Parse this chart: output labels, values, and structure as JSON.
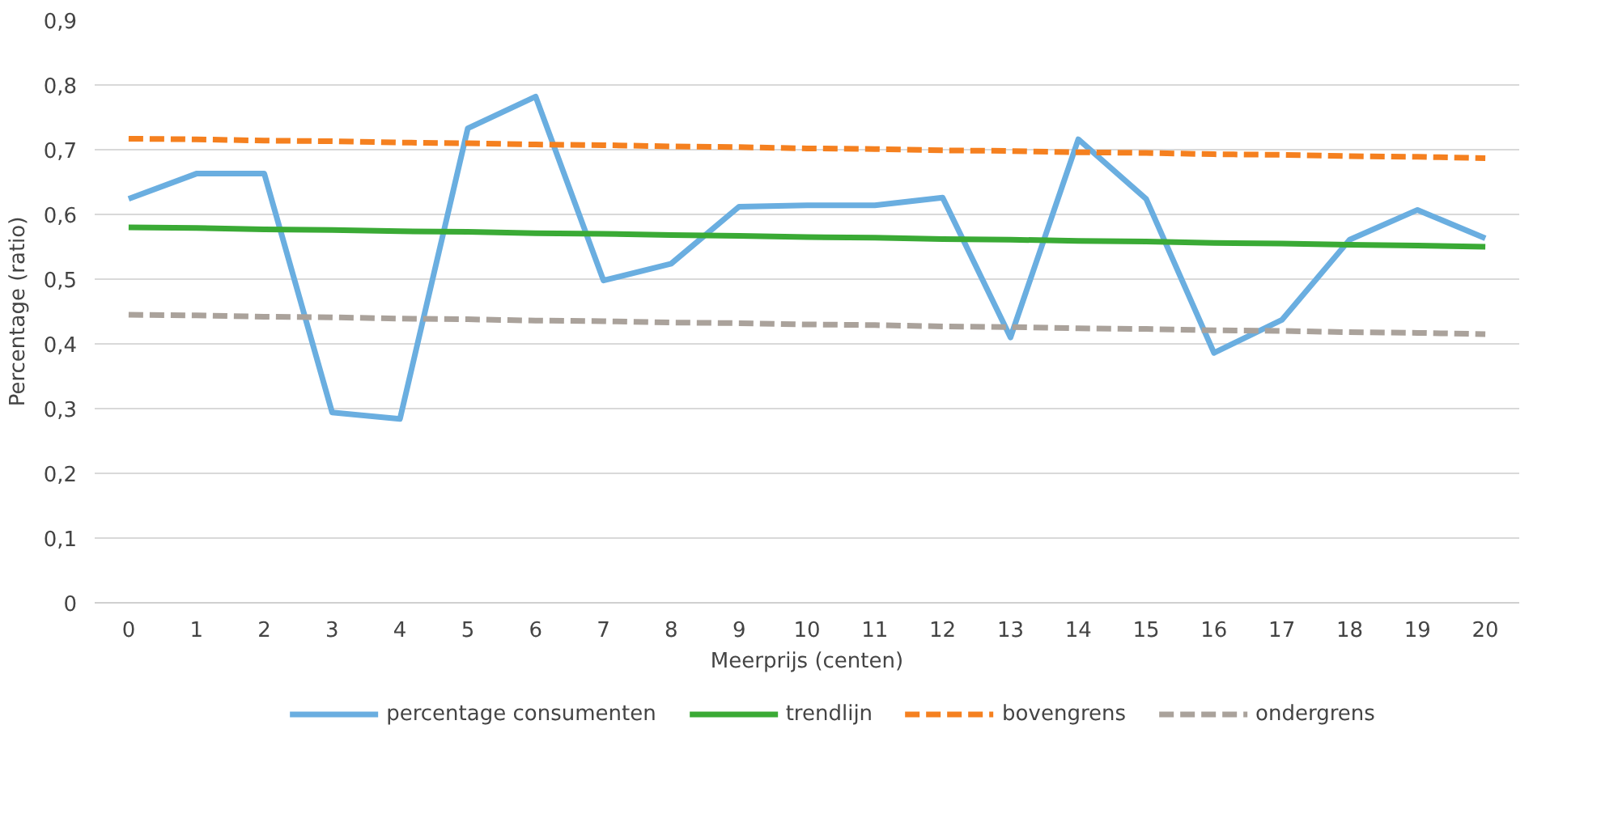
{
  "chart_data": {
    "type": "line",
    "xlabel": "Meerprijs (centen)",
    "ylabel": "Percentage (ratio)",
    "x": [
      0,
      1,
      2,
      3,
      4,
      5,
      6,
      7,
      8,
      9,
      10,
      11,
      12,
      13,
      14,
      15,
      16,
      17,
      18,
      19,
      20
    ],
    "xlim": [
      -0.5,
      20.5
    ],
    "xticks": [
      0,
      1,
      2,
      3,
      4,
      5,
      6,
      7,
      8,
      9,
      10,
      11,
      12,
      13,
      14,
      15,
      16,
      17,
      18,
      19,
      20
    ],
    "ylim": [
      0,
      0.9
    ],
    "yticks": [
      {
        "value": 0,
        "label": "0"
      },
      {
        "value": 0.1,
        "label": "0,1"
      },
      {
        "value": 0.2,
        "label": "0,2"
      },
      {
        "value": 0.3,
        "label": "0,3"
      },
      {
        "value": 0.4,
        "label": "0,4"
      },
      {
        "value": 0.5,
        "label": "0,5"
      },
      {
        "value": 0.6,
        "label": "0,6"
      },
      {
        "value": 0.7,
        "label": "0,7"
      },
      {
        "value": 0.8,
        "label": "0,8"
      },
      {
        "value": 0.9,
        "label": "0,9"
      }
    ],
    "grid": "y",
    "legend": "bottom",
    "marker": "none",
    "series": [
      {
        "name": "percentage consumenten",
        "color": "#6aaee0",
        "line_style": "solid",
        "values": [
          0.624,
          0.663,
          0.663,
          0.294,
          0.284,
          0.733,
          0.782,
          0.498,
          0.524,
          0.612,
          0.614,
          0.614,
          0.626,
          0.41,
          0.716,
          0.624,
          0.386,
          0.437,
          0.561,
          0.607,
          0.563
        ]
      },
      {
        "name": "trendlijn",
        "color": "#3aaa35",
        "line_style": "solid",
        "values": [
          0.58,
          0.579,
          0.577,
          0.576,
          0.574,
          0.573,
          0.571,
          0.57,
          0.568,
          0.567,
          0.565,
          0.564,
          0.562,
          0.561,
          0.559,
          0.558,
          0.556,
          0.555,
          0.553,
          0.552,
          0.55
        ]
      },
      {
        "name": "bovengrens",
        "color": "#f5801f",
        "line_style": "dashed",
        "values": [
          0.717,
          0.716,
          0.714,
          0.713,
          0.711,
          0.71,
          0.708,
          0.707,
          0.705,
          0.704,
          0.702,
          0.701,
          0.699,
          0.698,
          0.696,
          0.695,
          0.693,
          0.692,
          0.69,
          0.689,
          0.687
        ]
      },
      {
        "name": "ondergrens",
        "color": "#aaa29b",
        "line_style": "dashed",
        "values": [
          0.445,
          0.444,
          0.442,
          0.441,
          0.439,
          0.438,
          0.436,
          0.435,
          0.433,
          0.432,
          0.43,
          0.429,
          0.427,
          0.426,
          0.424,
          0.423,
          0.421,
          0.42,
          0.418,
          0.417,
          0.415
        ]
      }
    ]
  }
}
